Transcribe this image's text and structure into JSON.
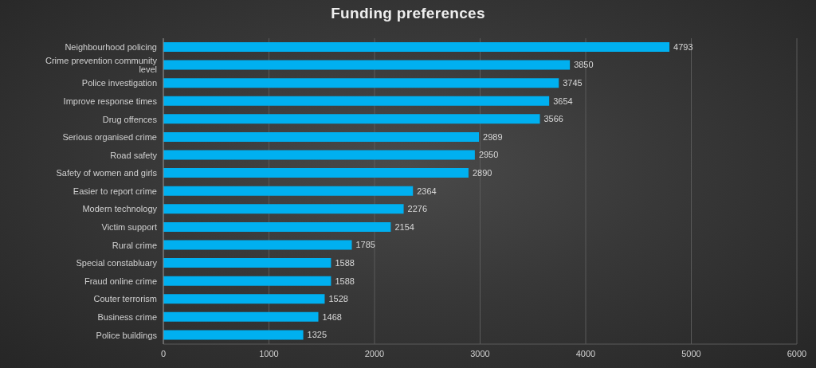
{
  "chart_data": {
    "type": "bar",
    "title": "Funding preferences",
    "orientation": "horizontal",
    "categories": [
      "Neighbourhood policing",
      "Crime prevention community level",
      "Police investigation",
      "Improve response times",
      "Drug offences",
      "Serious organised crime",
      "Road safety",
      "Safety of women and girls",
      "Easier to report crime",
      "Modern technology",
      "Victim support",
      "Rural crime",
      "Special constabluary",
      "Fraud online crime",
      "Couter terrorism",
      "Business crime",
      "Police buildings"
    ],
    "values": [
      4793,
      3850,
      3745,
      3654,
      3566,
      2989,
      2950,
      2890,
      2364,
      2276,
      2154,
      1785,
      1588,
      1588,
      1528,
      1468,
      1325
    ],
    "color": "#00b0f0",
    "xlim": [
      0,
      6000
    ],
    "xticks": [
      0,
      1000,
      2000,
      3000,
      4000,
      5000,
      6000
    ],
    "grid": true,
    "data_labels": true
  }
}
